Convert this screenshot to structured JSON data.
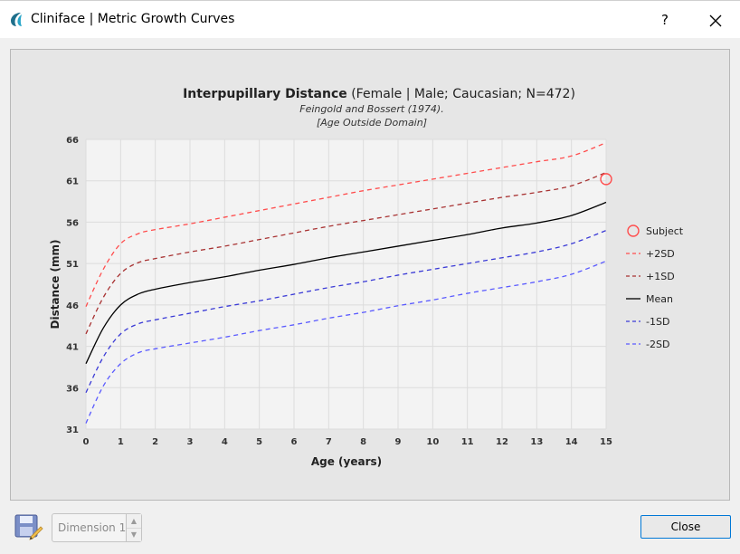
{
  "window": {
    "title": "Cliniface | Metric Growth Curves",
    "help_label": "?",
    "close_icon": "close-icon"
  },
  "colors": {
    "plus2sd": "#ff4d4d",
    "plus1sd": "#a83232",
    "mean": "#000000",
    "minus1sd": "#3a3ad6",
    "minus2sd": "#5a5aff",
    "subject": "#ff4d4d",
    "close_border": "#0078d7"
  },
  "chart_data": {
    "type": "line",
    "title_bold": "Interpupillary Distance",
    "title_rest": " (Female | Male; Caucasian; N=472)",
    "subtitle": "Feingold and Bossert (1974).",
    "note": "[Age Outside Domain]",
    "xlabel": "Age (years)",
    "ylabel": "Distance (mm)",
    "xlim": [
      0,
      15
    ],
    "ylim": [
      31,
      66
    ],
    "xticks": [
      "0",
      "1",
      "2",
      "3",
      "4",
      "5",
      "6",
      "7",
      "8",
      "9",
      "10",
      "11",
      "12",
      "13",
      "14",
      "15"
    ],
    "yticks": [
      "31",
      "36",
      "41",
      "46",
      "51",
      "56",
      "61",
      "66"
    ],
    "grid": true,
    "legend_position": "right",
    "x": [
      0,
      0.5,
      1,
      1.5,
      2,
      3,
      4,
      5,
      6,
      7,
      8,
      9,
      10,
      11,
      12,
      13,
      14,
      15
    ],
    "series": [
      {
        "name": "+2SD",
        "style": "dashed",
        "color_key": "plus2sd",
        "values": [
          45.8,
          50.3,
          53.4,
          54.6,
          55.1,
          55.8,
          56.6,
          57.4,
          58.2,
          59.0,
          59.8,
          60.5,
          61.2,
          61.9,
          62.6,
          63.3,
          64.0,
          65.6
        ]
      },
      {
        "name": "+1SD",
        "style": "dashed",
        "color_key": "plus1sd",
        "values": [
          42.5,
          46.9,
          49.8,
          51.1,
          51.6,
          52.4,
          53.1,
          53.9,
          54.7,
          55.5,
          56.2,
          56.9,
          57.6,
          58.3,
          59.0,
          59.6,
          60.4,
          62.0
        ]
      },
      {
        "name": "Mean",
        "style": "solid",
        "color_key": "mean",
        "values": [
          38.9,
          43.2,
          46.0,
          47.3,
          47.9,
          48.7,
          49.4,
          50.2,
          50.9,
          51.7,
          52.4,
          53.1,
          53.8,
          54.5,
          55.3,
          55.9,
          56.8,
          58.4
        ]
      },
      {
        "name": "-1SD",
        "style": "dashed",
        "color_key": "minus1sd",
        "values": [
          35.4,
          39.7,
          42.5,
          43.7,
          44.2,
          45.0,
          45.8,
          46.5,
          47.3,
          48.1,
          48.8,
          49.6,
          50.3,
          51.0,
          51.7,
          52.4,
          53.4,
          55.0
        ]
      },
      {
        "name": "-2SD",
        "style": "dashed",
        "color_key": "minus2sd",
        "values": [
          31.7,
          36.2,
          38.9,
          40.2,
          40.7,
          41.4,
          42.1,
          42.9,
          43.6,
          44.4,
          45.1,
          45.9,
          46.6,
          47.4,
          48.1,
          48.8,
          49.7,
          51.3
        ]
      }
    ],
    "subject_point": {
      "name": "Subject",
      "x": 15,
      "y": 61.2
    },
    "legend_order": [
      "Subject",
      "+2SD",
      "+1SD",
      "Mean",
      "-1SD",
      "-2SD"
    ]
  },
  "bottom": {
    "save_icon": "save-icon",
    "dimension_label": "Dimension 1",
    "close_label": "Close"
  }
}
